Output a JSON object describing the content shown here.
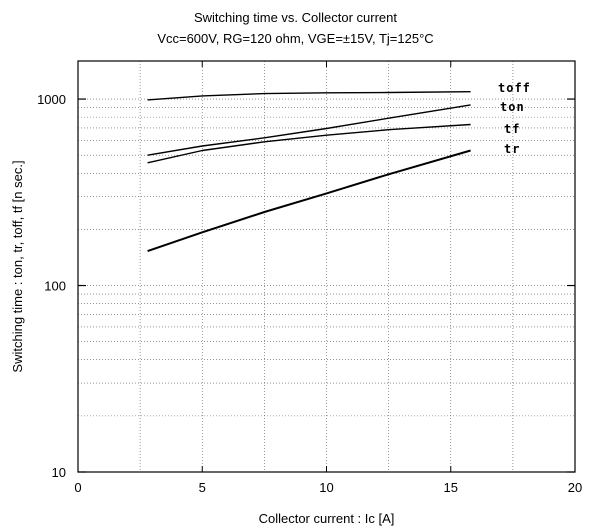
{
  "chart_data": {
    "type": "line",
    "title": "Switching time  vs. Collector current",
    "subtitle": "Vcc=600V, RG=120 ohm, VGE=±15V, Tj=125°C",
    "xlabel": "Collector  current  :  Ic [A]",
    "ylabel": "Switching  time  :  ton,  tr,  toff,  tf  [n sec.]",
    "xlim": [
      0,
      20
    ],
    "ylim": [
      10,
      1600
    ],
    "yscale": "log",
    "xticks": [
      0,
      5,
      10,
      15,
      20
    ],
    "xtick_labels": [
      "0",
      "5",
      "10",
      "15",
      "20"
    ],
    "yticks": [
      10,
      100,
      1000
    ],
    "ytick_labels": [
      "10",
      "100",
      "1000"
    ],
    "grid": true,
    "series": [
      {
        "name": "toff",
        "x": [
          2.8,
          5,
          7.5,
          10,
          12.5,
          15.8
        ],
        "y": [
          990,
          1040,
          1070,
          1080,
          1085,
          1095
        ]
      },
      {
        "name": "ton",
        "x": [
          2.8,
          5,
          7.5,
          10,
          12.5,
          15.8
        ],
        "y": [
          500,
          560,
          620,
          695,
          790,
          930
        ]
      },
      {
        "name": "tf",
        "x": [
          2.8,
          5,
          7.5,
          10,
          12.5,
          15.8
        ],
        "y": [
          455,
          530,
          590,
          640,
          685,
          730
        ]
      },
      {
        "name": "tr",
        "x": [
          2.8,
          5,
          7.5,
          10,
          12.5,
          15.8
        ],
        "y": [
          153,
          193,
          248,
          312,
          395,
          530
        ]
      }
    ]
  }
}
